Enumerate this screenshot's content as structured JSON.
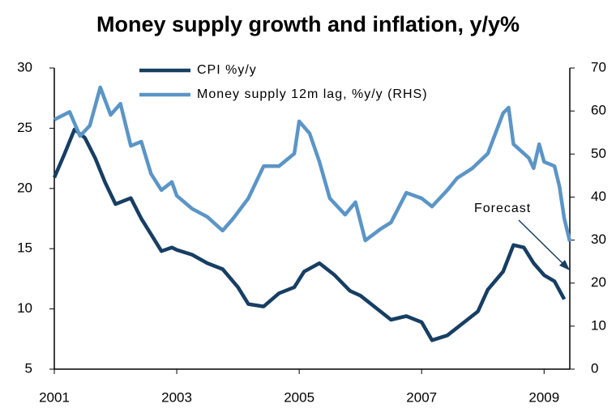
{
  "chart_data": {
    "type": "line",
    "title": "Money supply growth and inflation, y/y%",
    "annotation": "Forecast",
    "xlim": [
      2001,
      2009.42
    ],
    "xticks": [
      2001,
      2003,
      2005,
      2007,
      2009
    ],
    "ylim": [
      5,
      30
    ],
    "yticks": [
      5,
      10,
      15,
      20,
      25,
      30
    ],
    "y2lim": [
      0,
      70
    ],
    "y2ticks": [
      0,
      10,
      20,
      30,
      40,
      50,
      60,
      70
    ],
    "series": [
      {
        "name": "CPI %y/y",
        "color": "#173e63",
        "x": [
          2001.0,
          2001.17,
          2001.33,
          2001.5,
          2001.67,
          2001.83,
          2002.0,
          2002.25,
          2002.42,
          2002.58,
          2002.75,
          2002.92,
          2003.0,
          2003.25,
          2003.5,
          2003.75,
          2004.0,
          2004.17,
          2004.42,
          2004.67,
          2004.92,
          2005.08,
          2005.33,
          2005.58,
          2005.83,
          2006.0,
          2006.25,
          2006.5,
          2006.75,
          2007.0,
          2007.17,
          2007.42,
          2007.67,
          2007.92,
          2008.08,
          2008.33,
          2008.5,
          2008.67,
          2008.83,
          2009.0,
          2009.17,
          2009.33
        ],
        "values": [
          20.9,
          22.9,
          24.9,
          24.2,
          22.5,
          20.5,
          18.7,
          19.2,
          17.5,
          16.2,
          14.8,
          15.1,
          14.9,
          14.5,
          13.8,
          13.3,
          11.8,
          10.4,
          10.2,
          11.3,
          11.8,
          13.1,
          13.8,
          12.8,
          11.5,
          11.1,
          10.1,
          9.1,
          9.4,
          8.9,
          7.4,
          7.8,
          8.8,
          9.8,
          11.6,
          13.1,
          15.3,
          15.1,
          13.8,
          12.8,
          12.3,
          10.8
        ]
      },
      {
        "name": "Money supply 12m lag, %y/y (RHS)",
        "color": "#5b95c6",
        "axis": "y2",
        "x": [
          2001.0,
          2001.25,
          2001.42,
          2001.58,
          2001.75,
          2001.92,
          2002.08,
          2002.25,
          2002.42,
          2002.58,
          2002.75,
          2002.92,
          2003.0,
          2003.25,
          2003.5,
          2003.75,
          2003.92,
          2004.17,
          2004.42,
          2004.67,
          2004.92,
          2005.0,
          2005.17,
          2005.33,
          2005.5,
          2005.75,
          2005.92,
          2006.08,
          2006.33,
          2006.5,
          2006.75,
          2007.0,
          2007.17,
          2007.42,
          2007.58,
          2007.83,
          2008.08,
          2008.33,
          2008.42,
          2008.5,
          2008.75,
          2008.83,
          2008.92,
          2009.0,
          2009.17,
          2009.25,
          2009.33,
          2009.42
        ],
        "values": [
          58.0,
          59.8,
          54.2,
          56.6,
          65.5,
          59.1,
          61.7,
          51.9,
          52.9,
          45.4,
          41.6,
          43.5,
          40.3,
          37.3,
          35.4,
          32.2,
          35.0,
          39.7,
          47.2,
          47.2,
          50.1,
          57.6,
          54.8,
          48.2,
          39.7,
          35.9,
          38.8,
          29.9,
          32.6,
          34.1,
          41.0,
          39.7,
          37.8,
          41.6,
          44.4,
          46.7,
          50.1,
          59.5,
          60.8,
          52.3,
          49.1,
          46.7,
          52.3,
          48.2,
          47.2,
          42.5,
          35.0,
          29.7
        ]
      }
    ]
  }
}
